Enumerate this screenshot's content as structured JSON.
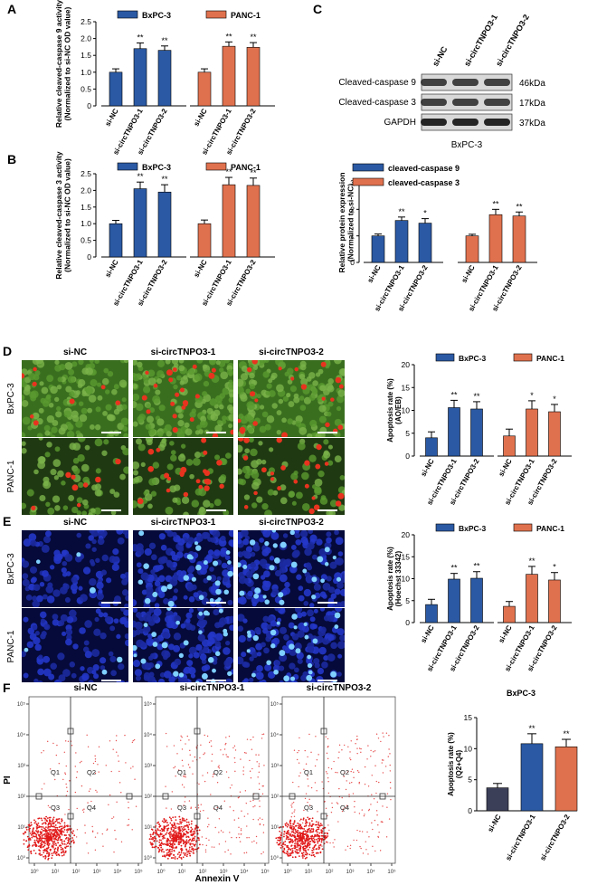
{
  "panels": {
    "A": "A",
    "B": "B",
    "C": "C",
    "D": "D",
    "E": "E",
    "F": "F"
  },
  "legend_common": {
    "bxpc3": "BxPC-3",
    "panc1": "PANC-1"
  },
  "colors": {
    "blue": "#2b59a3",
    "orange": "#e0714e",
    "navy": "#3c3f58",
    "dark": "#222222"
  },
  "western": {
    "lanes": [
      "si-NC",
      "si-circTNPO3-1",
      "si-circTNPO3-2"
    ],
    "rows": [
      {
        "label": "Cleaved-caspase 9",
        "kda": "46kDa"
      },
      {
        "label": "Cleaved-caspase 3",
        "kda": "17kDa"
      },
      {
        "label": "GAPDH",
        "kda": "37kDa"
      }
    ],
    "cell_line": "BxPC-3"
  },
  "micro_D": {
    "cols": [
      "si-NC",
      "si-circTNPO3-1",
      "si-circTNPO3-2"
    ],
    "rows": [
      "BxPC-3",
      "PANC-1"
    ]
  },
  "micro_E": {
    "cols": [
      "si-NC",
      "si-circTNPO3-1",
      "si-circTNPO3-2"
    ],
    "rows": [
      "BxPC-3",
      "PANC-1"
    ]
  },
  "flow": {
    "titles": [
      "si-NC",
      "si-circTNPO3-1",
      "si-circTNPO3-2"
    ],
    "xlabel": "Annexin V",
    "ylabel": "PI",
    "quadrants": [
      "Q1",
      "Q2",
      "Q3",
      "Q4"
    ],
    "ticks": [
      "10⁰",
      "10¹",
      "10²",
      "10³",
      "10⁴",
      "10⁵"
    ]
  },
  "chart_data": [
    {
      "id": "A",
      "type": "bar",
      "ylabel": "Relative cleaved-caspase 9 activity",
      "ylabel2": "(Normalized to si-NC OD value)",
      "ylim": [
        0,
        2.5
      ],
      "yticks": [
        0,
        0.5,
        1.0,
        1.5,
        2.0,
        2.5
      ],
      "categories": [
        "si-NC",
        "si-circTNPO3-1",
        "si-circTNPO3-2"
      ],
      "series": [
        {
          "name": "BxPC-3",
          "values": [
            1.0,
            1.7,
            1.65
          ],
          "errors": [
            0.1,
            0.17,
            0.13
          ],
          "sig": [
            "",
            "**",
            "**"
          ]
        },
        {
          "name": "PANC-1",
          "values": [
            1.0,
            1.77,
            1.74
          ],
          "errors": [
            0.1,
            0.13,
            0.14
          ],
          "sig": [
            "",
            "**",
            "**"
          ]
        }
      ]
    },
    {
      "id": "B",
      "type": "bar",
      "ylabel": "Relative cleaved-caspase 3 activity",
      "ylabel2": "(Normalized to si-NC OD value)",
      "ylim": [
        0,
        2.5
      ],
      "yticks": [
        0,
        0.5,
        1.0,
        1.5,
        2.0,
        2.5
      ],
      "categories": [
        "si-NC",
        "si-circTNPO3-1",
        "si-circTNPO3-2"
      ],
      "series": [
        {
          "name": "BxPC-3",
          "values": [
            1.0,
            2.05,
            1.95
          ],
          "errors": [
            0.1,
            0.2,
            0.22
          ],
          "sig": [
            "",
            "**",
            "**"
          ]
        },
        {
          "name": "PANC-1",
          "values": [
            1.0,
            2.17,
            2.15
          ],
          "errors": [
            0.11,
            0.22,
            0.22
          ],
          "sig": [
            "",
            "**",
            "**"
          ]
        }
      ]
    },
    {
      "id": "C",
      "type": "bar",
      "ylabel": "Relative protein expression",
      "ylabel2": "(Normalized to si-NC)",
      "ylim": [
        0,
        3
      ],
      "yticks": [
        0,
        1,
        2,
        3
      ],
      "categories": [
        "si-NC",
        "si-circTNPO3-1",
        "si-circTNPO3-2"
      ],
      "series": [
        {
          "name": "cleaved-caspase 9",
          "values": [
            1.0,
            1.58,
            1.48
          ],
          "errors": [
            0.07,
            0.13,
            0.17
          ],
          "sig": [
            "",
            "**",
            "*"
          ]
        },
        {
          "name": "cleaved-caspase 3",
          "values": [
            1.0,
            1.8,
            1.75
          ],
          "errors": [
            0.06,
            0.2,
            0.15
          ],
          "sig": [
            "",
            "**",
            "**"
          ]
        }
      ]
    },
    {
      "id": "D",
      "type": "bar",
      "ylabel": "Apoptosis rate (%)",
      "ylabel2": "(AO/EB)",
      "ylim": [
        0,
        20
      ],
      "yticks": [
        0,
        5,
        10,
        15,
        20
      ],
      "categories": [
        "si-NC",
        "si-circTNPO3-1",
        "si-circTNPO3-2"
      ],
      "series": [
        {
          "name": "BxPC-3",
          "values": [
            4.0,
            10.6,
            10.3
          ],
          "errors": [
            1.3,
            1.6,
            1.6
          ],
          "sig": [
            "",
            "**",
            "**"
          ]
        },
        {
          "name": "PANC-1",
          "values": [
            4.4,
            10.3,
            9.7
          ],
          "errors": [
            1.5,
            1.8,
            1.6
          ],
          "sig": [
            "",
            "*",
            "*"
          ]
        }
      ]
    },
    {
      "id": "E",
      "type": "bar",
      "ylabel": "Apoptosis rate (%)",
      "ylabel2": "(Hoechst 33342)",
      "ylim": [
        0,
        20
      ],
      "yticks": [
        0,
        5,
        10,
        15,
        20
      ],
      "categories": [
        "si-NC",
        "si-circTNPO3-1",
        "si-circTNPO3-2"
      ],
      "series": [
        {
          "name": "BxPC-3",
          "values": [
            4.1,
            9.9,
            10.1
          ],
          "errors": [
            1.2,
            1.3,
            1.5
          ],
          "sig": [
            "",
            "**",
            "**"
          ]
        },
        {
          "name": "PANC-1",
          "values": [
            3.7,
            11.0,
            9.7
          ],
          "errors": [
            1.1,
            1.8,
            1.7
          ],
          "sig": [
            "",
            "**",
            "*"
          ]
        }
      ]
    },
    {
      "id": "F",
      "type": "bar",
      "title": "BxPC-3",
      "ylabel": "Apoptosis rate (%)",
      "ylabel2": "(Q2+Q4)",
      "ylim": [
        0,
        15
      ],
      "yticks": [
        0,
        5,
        10,
        15
      ],
      "categories": [
        "si-NC",
        "si-circTNPO3-1",
        "si-circTNPO3-2"
      ],
      "values": [
        3.7,
        10.8,
        10.3
      ],
      "errors": [
        0.7,
        1.6,
        1.2
      ],
      "sig": [
        "",
        "**",
        "**"
      ],
      "bar_colors": [
        "#3c3f58",
        "#2b59a3",
        "#e0714e"
      ]
    }
  ]
}
